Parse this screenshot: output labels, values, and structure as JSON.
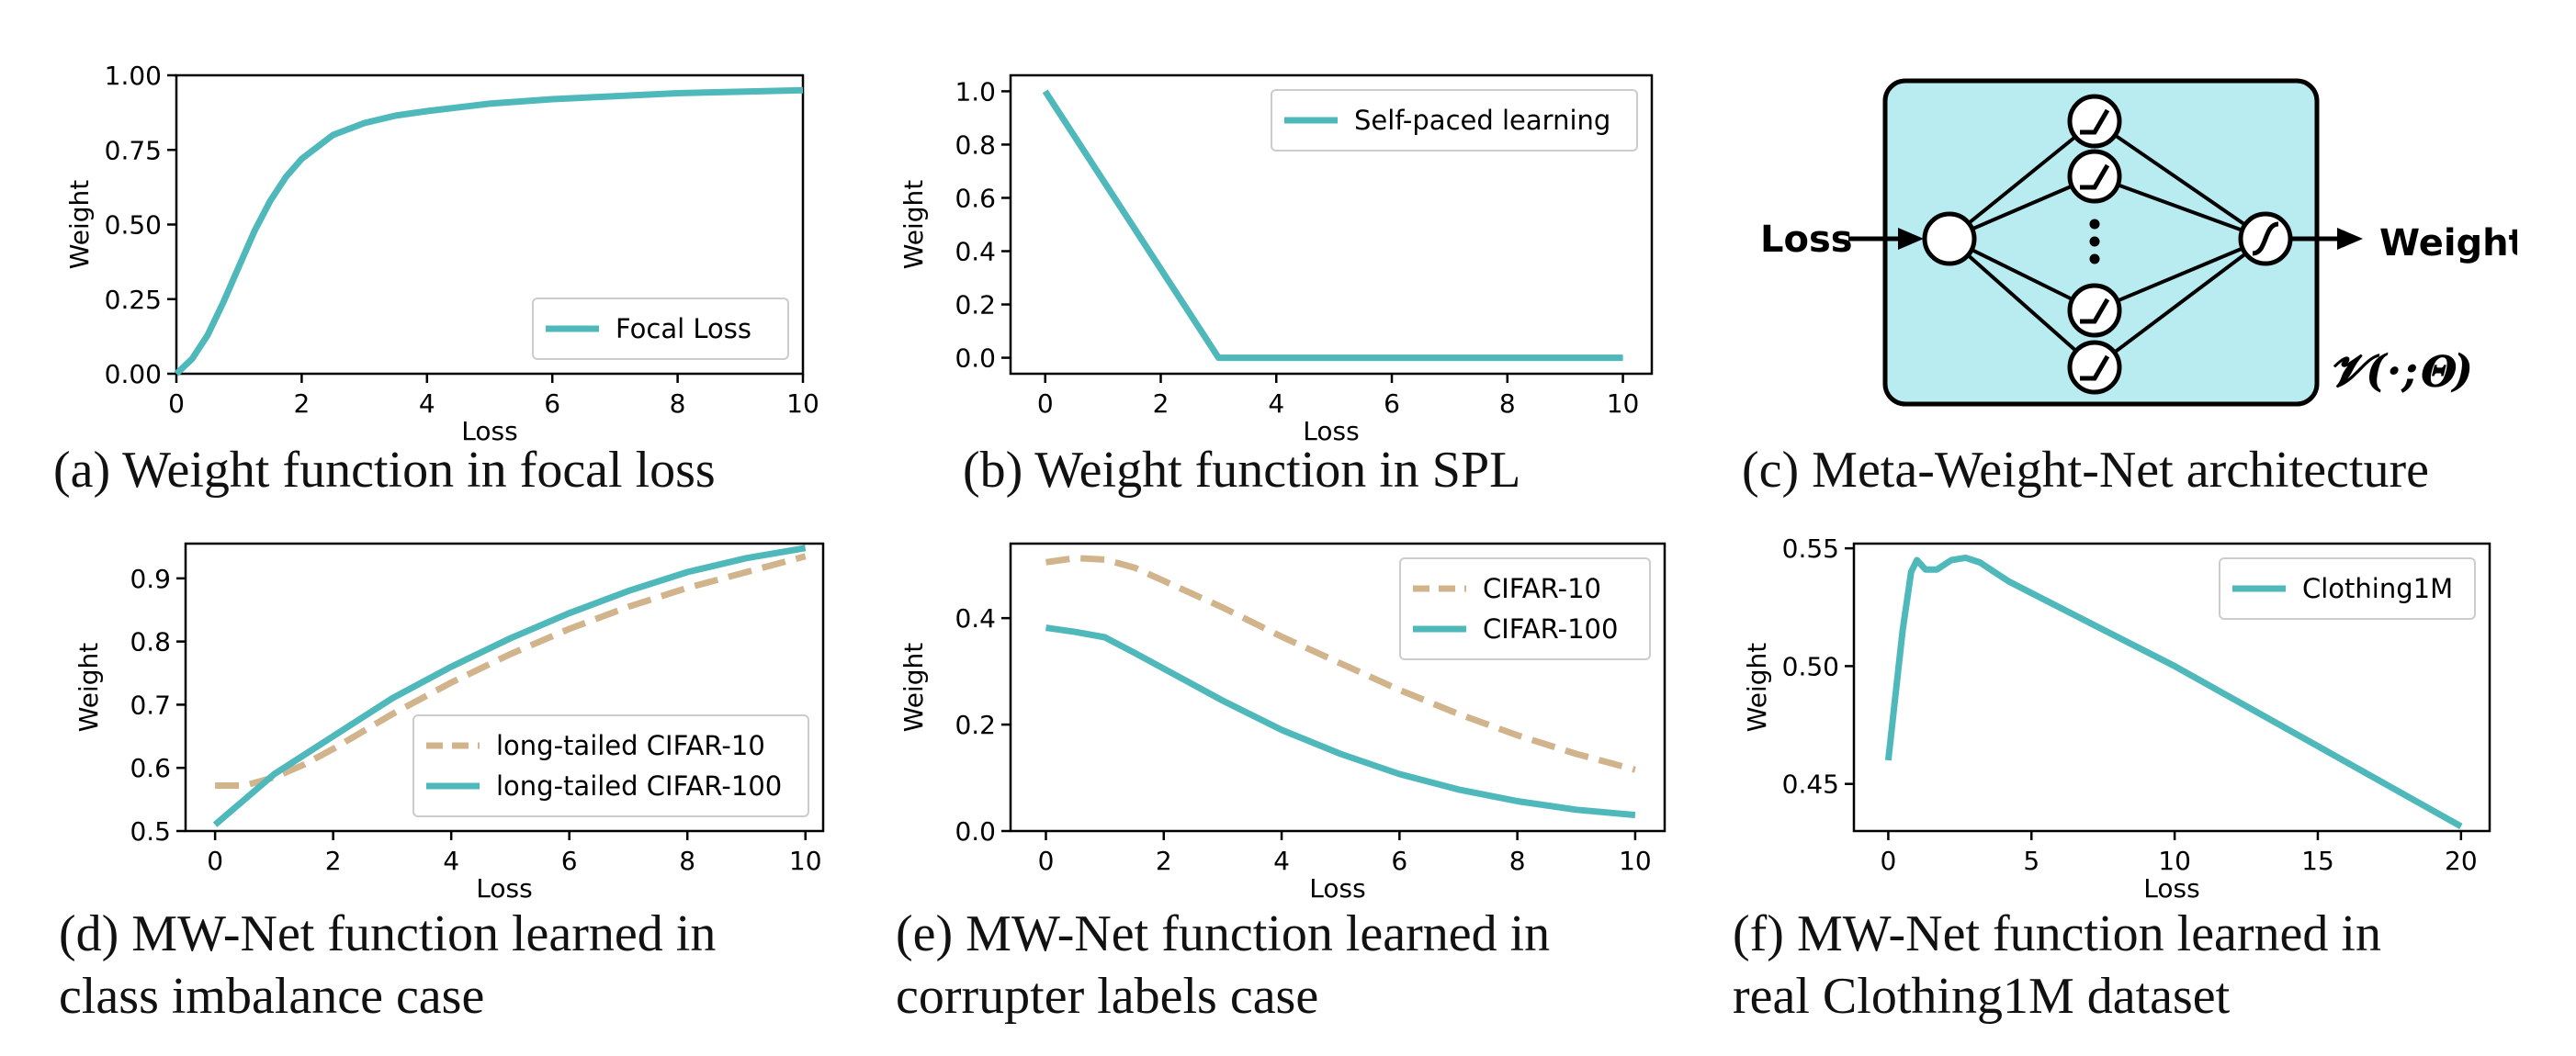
{
  "colors": {
    "teal": "#4fb8bb",
    "tan": "#d2b48c",
    "panel_fill": "#b8ecf0",
    "axis": "#000000"
  },
  "captions": {
    "a": "(a)  Weight function in focal loss",
    "b": "(b)  Weight function in SPL",
    "c": "(c)  Meta-Weight-Net architecture",
    "d1": "(d)  MW-Net function learned in",
    "d2": "class imbalance case",
    "e1": "(e)  MW-Net function learned in",
    "e2": "corrupter labels case",
    "f1": "(f)  MW-Net function learned in",
    "f2": "real Clothing1M dataset"
  },
  "diagram": {
    "input_label": "Loss",
    "output_label": "Weight",
    "formula": "𝓥(·;𝚯)",
    "icons": [
      "relu-icon",
      "relu-icon",
      "relu-icon",
      "relu-icon",
      "sigmoid-icon"
    ]
  },
  "chart_data": [
    {
      "id": "a",
      "type": "line",
      "xlabel": "Loss",
      "ylabel": "Weight",
      "xlim": [
        0,
        10
      ],
      "ylim": [
        0,
        1.0
      ],
      "xticks": [
        0,
        2,
        4,
        6,
        8,
        10
      ],
      "xtick_labels": [
        "0",
        "2",
        "4",
        "6",
        "8",
        "10"
      ],
      "yticks": [
        0,
        0.25,
        0.5,
        0.75,
        1.0
      ],
      "ytick_labels": [
        "0.00",
        "0.25",
        "0.50",
        "0.75",
        "1.00"
      ],
      "legend_position": "bottom-right",
      "series": [
        {
          "name": "Focal Loss",
          "style": "solid",
          "color": "#4fb8bb",
          "x": [
            0,
            0.25,
            0.5,
            0.75,
            1,
            1.25,
            1.5,
            1.75,
            2,
            2.5,
            3,
            3.5,
            4,
            5,
            6,
            7,
            8,
            9,
            10
          ],
          "y": [
            0.0,
            0.05,
            0.13,
            0.24,
            0.36,
            0.48,
            0.58,
            0.66,
            0.72,
            0.8,
            0.84,
            0.865,
            0.88,
            0.905,
            0.92,
            0.93,
            0.94,
            0.945,
            0.95
          ]
        }
      ]
    },
    {
      "id": "b",
      "type": "line",
      "xlabel": "Loss",
      "ylabel": "Weight",
      "xlim": [
        -0.6,
        10.5
      ],
      "ylim": [
        -0.06,
        1.06
      ],
      "xticks": [
        0,
        2,
        4,
        6,
        8,
        10
      ],
      "xtick_labels": [
        "0",
        "2",
        "4",
        "6",
        "8",
        "10"
      ],
      "yticks": [
        0,
        0.2,
        0.4,
        0.6,
        0.8,
        1.0
      ],
      "ytick_labels": [
        "0.0",
        "0.2",
        "0.4",
        "0.6",
        "0.8",
        "1.0"
      ],
      "legend_position": "top-right",
      "series": [
        {
          "name": "Self-paced learning",
          "style": "solid",
          "color": "#4fb8bb",
          "x": [
            0,
            3,
            10
          ],
          "y": [
            1.0,
            0.0,
            0.0
          ]
        }
      ]
    },
    {
      "id": "d",
      "type": "line",
      "xlabel": "Loss",
      "ylabel": "Weight",
      "xlim": [
        -0.5,
        10.3
      ],
      "ylim": [
        0.5,
        0.955
      ],
      "xticks": [
        0,
        2,
        4,
        6,
        8,
        10
      ],
      "xtick_labels": [
        "0",
        "2",
        "4",
        "6",
        "8",
        "10"
      ],
      "yticks": [
        0.5,
        0.6,
        0.7,
        0.8,
        0.9
      ],
      "ytick_labels": [
        "0.5",
        "0.6",
        "0.7",
        "0.8",
        "0.9"
      ],
      "legend_position": "bottom-right",
      "series": [
        {
          "name": "long-tailed CIFAR-10",
          "style": "dashed",
          "color": "#d2b48c",
          "x": [
            0,
            0.5,
            1,
            1.5,
            2,
            3,
            4,
            5,
            6,
            7,
            8,
            9,
            10
          ],
          "y": [
            0.572,
            0.572,
            0.585,
            0.605,
            0.63,
            0.685,
            0.735,
            0.78,
            0.82,
            0.855,
            0.885,
            0.91,
            0.935
          ]
        },
        {
          "name": "long-tailed CIFAR-100",
          "style": "solid",
          "color": "#4fb8bb",
          "x": [
            0,
            0.5,
            1,
            1.5,
            2,
            3,
            4,
            5,
            6,
            7,
            8,
            9,
            10
          ],
          "y": [
            0.51,
            0.55,
            0.59,
            0.62,
            0.65,
            0.71,
            0.76,
            0.805,
            0.845,
            0.88,
            0.91,
            0.932,
            0.948
          ]
        }
      ]
    },
    {
      "id": "e",
      "type": "line",
      "xlabel": "Loss",
      "ylabel": "Weight",
      "xlim": [
        -0.6,
        10.5
      ],
      "ylim": [
        0,
        0.54
      ],
      "xticks": [
        0,
        2,
        4,
        6,
        8,
        10
      ],
      "xtick_labels": [
        "0",
        "2",
        "4",
        "6",
        "8",
        "10"
      ],
      "yticks": [
        0,
        0.2,
        0.4
      ],
      "ytick_labels": [
        "0.0",
        "0.2",
        "0.4"
      ],
      "legend_position": "top-right",
      "series": [
        {
          "name": "CIFAR-10",
          "style": "dashed",
          "color": "#d2b48c",
          "x": [
            0,
            0.5,
            1,
            1.5,
            2,
            3,
            4,
            5,
            6,
            7,
            8,
            9,
            10
          ],
          "y": [
            0.505,
            0.513,
            0.51,
            0.495,
            0.47,
            0.42,
            0.365,
            0.315,
            0.265,
            0.22,
            0.18,
            0.145,
            0.115
          ]
        },
        {
          "name": "CIFAR-100",
          "style": "solid",
          "color": "#4fb8bb",
          "x": [
            0,
            0.5,
            1,
            1.5,
            2,
            3,
            4,
            5,
            6,
            7,
            8,
            9,
            10
          ],
          "y": [
            0.382,
            0.374,
            0.364,
            0.335,
            0.305,
            0.245,
            0.19,
            0.145,
            0.107,
            0.078,
            0.056,
            0.04,
            0.03
          ]
        }
      ]
    },
    {
      "id": "f",
      "type": "line",
      "xlabel": "Loss",
      "ylabel": "Weight",
      "xlim": [
        -1.2,
        21
      ],
      "ylim": [
        0.43,
        0.552
      ],
      "xticks": [
        0,
        5,
        10,
        15,
        20
      ],
      "xtick_labels": [
        "0",
        "5",
        "10",
        "15",
        "20"
      ],
      "yticks": [
        0.45,
        0.5,
        0.55
      ],
      "ytick_labels": [
        "0.45",
        "0.50",
        "0.55"
      ],
      "legend_position": "top-right",
      "series": [
        {
          "name": "Clothing1M",
          "style": "solid",
          "color": "#4fb8bb",
          "x": [
            0,
            0.5,
            0.8,
            1.0,
            1.3,
            1.7,
            2.2,
            2.7,
            3.2,
            3.7,
            4.2,
            5,
            10,
            15,
            20
          ],
          "y": [
            0.46,
            0.515,
            0.54,
            0.545,
            0.541,
            0.541,
            0.545,
            0.546,
            0.544,
            0.54,
            0.536,
            0.531,
            0.5,
            0.466,
            0.432
          ]
        }
      ]
    }
  ]
}
